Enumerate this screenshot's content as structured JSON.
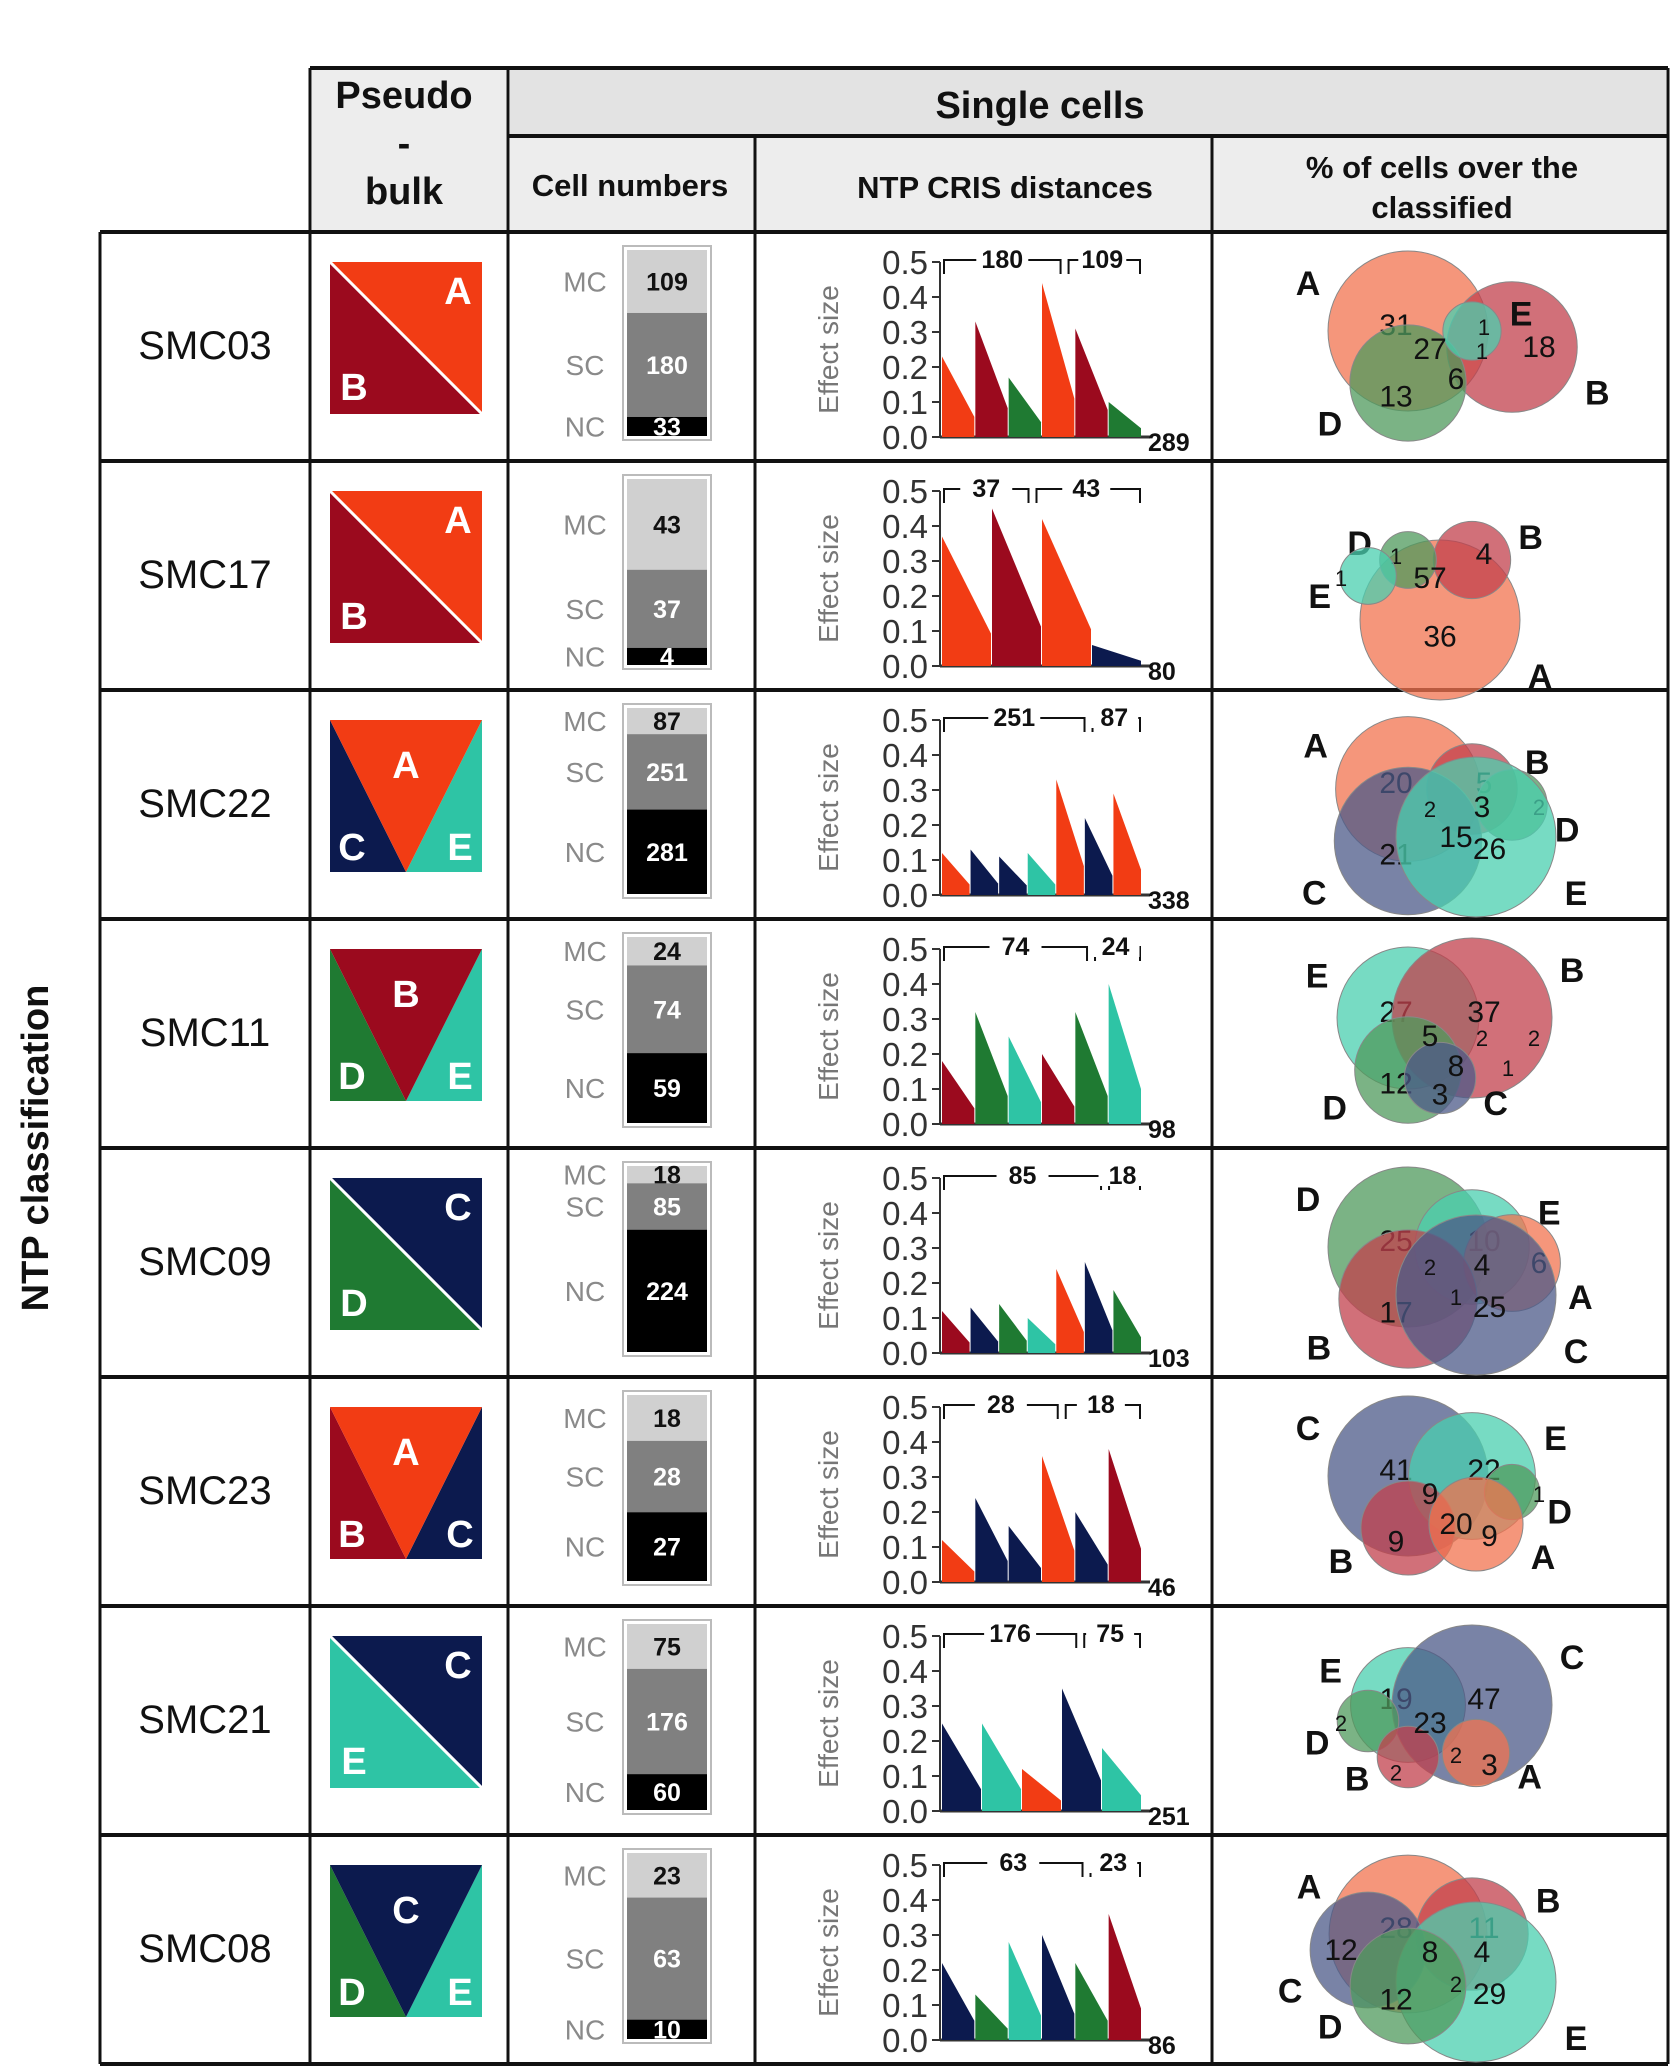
{
  "headers": {
    "pseudo_bulk": [
      "Pseudo",
      "-",
      "bulk"
    ],
    "single_cells": "Single cells",
    "cell_numbers": "Cell numbers",
    "ntp_distances": "NTP CRIS distances",
    "pct_cells": [
      "% of cells over the",
      "classified"
    ],
    "side_label": "NTP classification",
    "axis_title": "Effect size",
    "axis_ticks": [
      "0.0",
      "0.1",
      "0.2",
      "0.3",
      "0.4",
      "0.5"
    ],
    "bar_labels": [
      "MC",
      "SC",
      "NC"
    ]
  },
  "colors": {
    "A": "#f23c14",
    "B": "#9b0a1e",
    "C": "#0c1a4e",
    "D": "#1f7a32",
    "E": "#2ec4a5",
    "venn": {
      "A": "#f2734f",
      "B": "#c2404c",
      "C": "#4c5a88",
      "D": "#4f9a5c",
      "E": "#49cfaf"
    },
    "mc": "#d0d0d0",
    "sc": "#808080",
    "nc": "#000000"
  },
  "rows": [
    {
      "id": "SMC03",
      "pseudo": {
        "type": "diag",
        "tr": "A",
        "bl": "B"
      },
      "bar": {
        "mc": 109,
        "sc": 180,
        "nc": 33
      },
      "chart": {
        "segments": [
          [
            "A",
            0.23
          ],
          [
            "B",
            0.33
          ],
          [
            "D",
            0.17
          ],
          [
            "A",
            0.44
          ],
          [
            "B",
            0.31
          ],
          [
            "D",
            0.1
          ]
        ],
        "n_total": 289,
        "b1": 180,
        "b2": 109
      },
      "venn": {
        "circles": [
          {
            "set": "A",
            "value": 31,
            "label_pos": "tl"
          },
          {
            "set": "B",
            "value": 18,
            "label_pos": "r"
          },
          {
            "set": "D",
            "value": 13,
            "label_pos": "bl"
          },
          {
            "set": "E",
            "value": 1,
            "label_pos": "tr"
          }
        ],
        "overlaps": [
          {
            "value": 27
          },
          {
            "value": 6
          },
          {
            "value": 1
          }
        ]
      }
    },
    {
      "id": "SMC17",
      "pseudo": {
        "type": "diag",
        "tr": "A",
        "bl": "B"
      },
      "bar": {
        "mc": 43,
        "sc": 37,
        "nc": 4
      },
      "chart": {
        "segments": [
          [
            "A",
            0.37
          ],
          [
            "B",
            0.45
          ],
          [
            "A",
            0.42
          ],
          [
            "C",
            0.06
          ]
        ],
        "n_total": 80,
        "b1": 37,
        "b2": 43
      },
      "venn": {
        "circles": [
          {
            "set": "A",
            "value": 36,
            "label_pos": "b"
          },
          {
            "set": "B",
            "value": 4,
            "label_pos": "tr"
          },
          {
            "set": "D",
            "value": 1,
            "label_pos": "tl"
          },
          {
            "set": "E",
            "value": 1,
            "label_pos": "l"
          }
        ],
        "overlaps": [
          {
            "value": 57
          }
        ]
      }
    },
    {
      "id": "SMC22",
      "pseudo": {
        "type": "tri",
        "top": "A",
        "left": "C",
        "right": "E",
        "apex": "up"
      },
      "bar": {
        "mc": 87,
        "sc": 251,
        "nc": 281
      },
      "chart": {
        "segments": [
          [
            "A",
            0.12
          ],
          [
            "C",
            0.13
          ],
          [
            "C",
            0.11
          ],
          [
            "E",
            0.12
          ],
          [
            "A",
            0.33
          ],
          [
            "C",
            0.22
          ],
          [
            "A",
            0.29
          ]
        ],
        "n_total": 338,
        "b1": 251,
        "b2": 87
      },
      "venn": {
        "circles": [
          {
            "set": "A",
            "value": 20,
            "label_pos": "tl"
          },
          {
            "set": "B",
            "value": 5,
            "label_pos": "tr"
          },
          {
            "set": "D",
            "value": 2,
            "label_pos": "r"
          },
          {
            "set": "C",
            "value": 21,
            "label_pos": "bl"
          },
          {
            "set": "E",
            "value": 26,
            "label_pos": "br"
          }
        ],
        "overlaps": [
          {
            "value": 2
          },
          {
            "value": 15
          },
          {
            "value": 3
          }
        ]
      }
    },
    {
      "id": "SMC11",
      "pseudo": {
        "type": "tri",
        "top": "B",
        "left": "D",
        "right": "E",
        "apex": "down"
      },
      "bar": {
        "mc": 24,
        "sc": 74,
        "nc": 59
      },
      "chart": {
        "segments": [
          [
            "B",
            0.18
          ],
          [
            "D",
            0.32
          ],
          [
            "E",
            0.25
          ],
          [
            "B",
            0.2
          ],
          [
            "D",
            0.32
          ],
          [
            "E",
            0.4
          ]
        ],
        "n_total": 98,
        "b1": 74,
        "b2": 24
      },
      "venn": {
        "circles": [
          {
            "set": "E",
            "value": 27,
            "label_pos": "tl"
          },
          {
            "set": "B",
            "value": 37,
            "label_pos": "tr"
          },
          {
            "set": "D",
            "value": 12,
            "label_pos": "bl"
          },
          {
            "set": "C",
            "value": 3,
            "label_pos": "b"
          }
        ],
        "overlaps": [
          {
            "value": 5
          },
          {
            "value": 8
          },
          {
            "value": 2
          },
          {
            "value": 1
          },
          {
            "value": 2
          }
        ]
      }
    },
    {
      "id": "SMC09",
      "pseudo": {
        "type": "diag",
        "tr": "C",
        "bl": "D"
      },
      "bar": {
        "mc": 18,
        "sc": 85,
        "nc": 224
      },
      "chart": {
        "segments": [
          [
            "B",
            0.12
          ],
          [
            "C",
            0.13
          ],
          [
            "D",
            0.14
          ],
          [
            "E",
            0.1
          ],
          [
            "A",
            0.24
          ],
          [
            "C",
            0.26
          ],
          [
            "D",
            0.18
          ]
        ],
        "n_total": 103,
        "b1": 85,
        "b2": 18
      },
      "venn": {
        "circles": [
          {
            "set": "D",
            "value": 25,
            "label_pos": "tl"
          },
          {
            "set": "E",
            "value": 10,
            "label_pos": "tr"
          },
          {
            "set": "A",
            "value": 6,
            "label_pos": "r"
          },
          {
            "set": "B",
            "value": 17,
            "label_pos": "bl"
          },
          {
            "set": "C",
            "value": 25,
            "label_pos": "br"
          }
        ],
        "overlaps": [
          {
            "value": 2
          },
          {
            "value": 1
          },
          {
            "value": 4
          }
        ]
      }
    },
    {
      "id": "SMC23",
      "pseudo": {
        "type": "tri",
        "top": "A",
        "left": "B",
        "right": "C",
        "apex": "up"
      },
      "bar": {
        "mc": 18,
        "sc": 28,
        "nc": 27
      },
      "chart": {
        "segments": [
          [
            "A",
            0.12
          ],
          [
            "C",
            0.24
          ],
          [
            "C",
            0.16
          ],
          [
            "A",
            0.36
          ],
          [
            "C",
            0.2
          ],
          [
            "B",
            0.38
          ]
        ],
        "n_total": 46,
        "b1": 28,
        "b2": 18
      },
      "venn": {
        "circles": [
          {
            "set": "C",
            "value": 41,
            "label_pos": "tl"
          },
          {
            "set": "E",
            "value": 22,
            "label_pos": "tr"
          },
          {
            "set": "D",
            "value": 1,
            "label_pos": "r"
          },
          {
            "set": "B",
            "value": 9,
            "label_pos": "bl"
          },
          {
            "set": "A",
            "value": 9,
            "label_pos": "br"
          }
        ],
        "overlaps": [
          {
            "value": 9
          },
          {
            "value": 20
          }
        ]
      }
    },
    {
      "id": "SMC21",
      "pseudo": {
        "type": "diag",
        "tr": "C",
        "bl": "E"
      },
      "bar": {
        "mc": 75,
        "sc": 176,
        "nc": 60
      },
      "chart": {
        "segments": [
          [
            "C",
            0.25
          ],
          [
            "E",
            0.25
          ],
          [
            "A",
            0.12
          ],
          [
            "C",
            0.35
          ],
          [
            "E",
            0.18
          ]
        ],
        "n_total": 251,
        "b1": 176,
        "b2": 75
      },
      "venn": {
        "circles": [
          {
            "set": "E",
            "value": 19,
            "label_pos": "tl"
          },
          {
            "set": "C",
            "value": 47,
            "label_pos": "tr"
          },
          {
            "set": "D",
            "value": 2,
            "label_pos": "l"
          },
          {
            "set": "B",
            "value": 2,
            "label_pos": "bl"
          },
          {
            "set": "A",
            "value": 3,
            "label_pos": "br"
          }
        ],
        "overlaps": [
          {
            "value": 23
          },
          {
            "value": 2
          }
        ]
      }
    },
    {
      "id": "SMC08",
      "pseudo": {
        "type": "tri",
        "top": "C",
        "left": "D",
        "right": "E",
        "apex": "down"
      },
      "bar": {
        "mc": 23,
        "sc": 63,
        "nc": 10
      },
      "chart": {
        "segments": [
          [
            "C",
            0.22
          ],
          [
            "D",
            0.13
          ],
          [
            "E",
            0.28
          ],
          [
            "C",
            0.3
          ],
          [
            "D",
            0.22
          ],
          [
            "B",
            0.36
          ]
        ],
        "n_total": 86,
        "b1": 63,
        "b2": 23
      },
      "venn": {
        "circles": [
          {
            "set": "A",
            "value": 28,
            "label_pos": "tl"
          },
          {
            "set": "B",
            "value": 11,
            "label_pos": "tr"
          },
          {
            "set": "C",
            "value": 12,
            "label_pos": "l"
          },
          {
            "set": "E",
            "value": 29,
            "label_pos": "br"
          },
          {
            "set": "D",
            "value": 12,
            "label_pos": "bl"
          }
        ],
        "overlaps": [
          {
            "value": 8
          },
          {
            "value": 2
          },
          {
            "value": 4
          }
        ]
      }
    }
  ]
}
